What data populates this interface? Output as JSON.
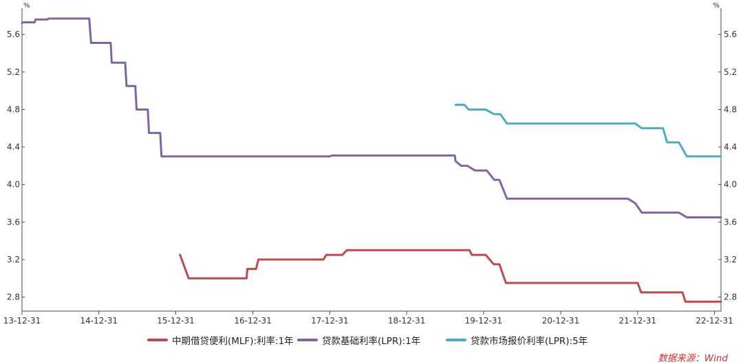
{
  "chart_data": {
    "type": "line",
    "unit_left": "%",
    "unit_right": "%",
    "y_ticks": [
      2.8,
      3.2,
      3.6,
      4.0,
      4.4,
      4.8,
      5.2,
      5.6
    ],
    "ylim": [
      2.65,
      5.88
    ],
    "xlim": [
      "2013-12-31",
      "2023-01-31"
    ],
    "x_ticks": [
      {
        "date": "2013-12-31",
        "label": "13-12-31"
      },
      {
        "date": "2014-12-31",
        "label": "14-12-31"
      },
      {
        "date": "2015-12-31",
        "label": "15-12-31"
      },
      {
        "date": "2016-12-31",
        "label": "16-12-31"
      },
      {
        "date": "2017-12-31",
        "label": "17-12-31"
      },
      {
        "date": "2018-12-31",
        "label": "18-12-31"
      },
      {
        "date": "2019-12-31",
        "label": "19-12-31"
      },
      {
        "date": "2020-12-31",
        "label": "20-12-31"
      },
      {
        "date": "2021-12-31",
        "label": "21-12-31"
      },
      {
        "date": "2022-12-31",
        "label": "22-12-31"
      }
    ],
    "grid": false,
    "legend_position": "bottom",
    "series": [
      {
        "name": "中期借贷便利(MLF):利率:1年",
        "color": "#c0474a",
        "points": [
          [
            "2016-01-20",
            3.25
          ],
          [
            "2016-03-01",
            3.0
          ],
          [
            "2016-12-01",
            3.0
          ],
          [
            "2016-12-05",
            3.1
          ],
          [
            "2017-01-15",
            3.1
          ],
          [
            "2017-01-26",
            3.2
          ],
          [
            "2017-12-01",
            3.2
          ],
          [
            "2017-12-14",
            3.25
          ],
          [
            "2018-03-01",
            3.25
          ],
          [
            "2018-03-22",
            3.3
          ],
          [
            "2019-10-25",
            3.3
          ],
          [
            "2019-11-05",
            3.25
          ],
          [
            "2020-01-10",
            3.25
          ],
          [
            "2020-02-17",
            3.15
          ],
          [
            "2020-03-15",
            3.15
          ],
          [
            "2020-04-15",
            2.95
          ],
          [
            "2022-01-01",
            2.95
          ],
          [
            "2022-01-17",
            2.85
          ],
          [
            "2022-08-01",
            2.85
          ],
          [
            "2022-08-15",
            2.75
          ],
          [
            "2023-01-31",
            2.75
          ]
        ]
      },
      {
        "name": "贷款基础利率(LPR):1年",
        "color": "#8064a2",
        "points": [
          [
            "2013-12-31",
            5.72
          ],
          [
            "2014-01-05",
            5.73
          ],
          [
            "2014-03-01",
            5.73
          ],
          [
            "2014-03-05",
            5.76
          ],
          [
            "2014-05-01",
            5.76
          ],
          [
            "2014-05-05",
            5.77
          ],
          [
            "2014-11-15",
            5.77
          ],
          [
            "2014-11-24",
            5.51
          ],
          [
            "2015-02-25",
            5.51
          ],
          [
            "2015-03-02",
            5.3
          ],
          [
            "2015-05-05",
            5.3
          ],
          [
            "2015-05-11",
            5.05
          ],
          [
            "2015-06-22",
            5.05
          ],
          [
            "2015-06-28",
            4.8
          ],
          [
            "2015-08-20",
            4.8
          ],
          [
            "2015-08-26",
            4.55
          ],
          [
            "2015-10-18",
            4.55
          ],
          [
            "2015-10-24",
            4.3
          ],
          [
            "2018-01-01",
            4.3
          ],
          [
            "2018-01-10",
            4.31
          ],
          [
            "2019-08-16",
            4.31
          ],
          [
            "2019-08-20",
            4.25
          ],
          [
            "2019-09-15",
            4.2
          ],
          [
            "2019-10-15",
            4.2
          ],
          [
            "2019-11-20",
            4.15
          ],
          [
            "2020-01-15",
            4.15
          ],
          [
            "2020-02-20",
            4.05
          ],
          [
            "2020-03-15",
            4.05
          ],
          [
            "2020-04-20",
            3.85
          ],
          [
            "2021-11-15",
            3.85
          ],
          [
            "2021-12-20",
            3.8
          ],
          [
            "2022-01-20",
            3.7
          ],
          [
            "2022-07-15",
            3.7
          ],
          [
            "2022-08-22",
            3.65
          ],
          [
            "2023-01-31",
            3.65
          ]
        ]
      },
      {
        "name": "贷款市场报价利率(LPR):5年",
        "color": "#4bacc6",
        "points": [
          [
            "2019-08-20",
            4.85
          ],
          [
            "2019-10-01",
            4.85
          ],
          [
            "2019-10-21",
            4.8
          ],
          [
            "2020-01-10",
            4.8
          ],
          [
            "2020-02-20",
            4.75
          ],
          [
            "2020-03-20",
            4.75
          ],
          [
            "2020-04-20",
            4.65
          ],
          [
            "2021-12-20",
            4.65
          ],
          [
            "2022-01-20",
            4.6
          ],
          [
            "2022-05-01",
            4.6
          ],
          [
            "2022-05-20",
            4.45
          ],
          [
            "2022-07-15",
            4.45
          ],
          [
            "2022-08-22",
            4.3
          ],
          [
            "2023-01-31",
            4.3
          ]
        ]
      }
    ]
  },
  "legend": [
    {
      "label": "中期借贷便利(MLF):利率:1年",
      "color": "#c0474a"
    },
    {
      "label": "贷款基础利率(LPR):1年",
      "color": "#8064a2"
    },
    {
      "label": "贷款市场报价利率(LPR):5年",
      "color": "#4bacc6"
    }
  ],
  "source": "数据来源：Wind"
}
